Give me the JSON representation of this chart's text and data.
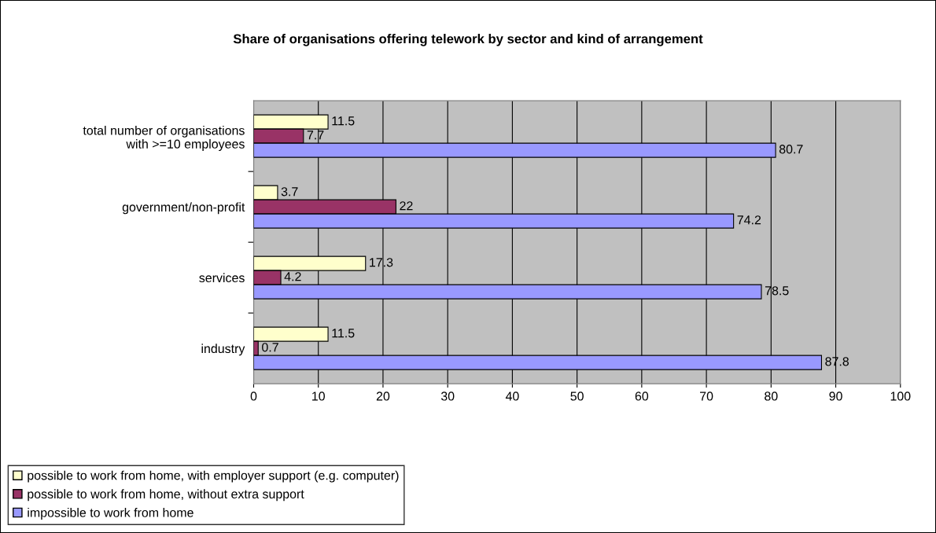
{
  "chart_data": {
    "type": "bar",
    "orientation": "horizontal",
    "title": "Share of organisations offering telework by sector and kind of arrangement",
    "categories": [
      "total number of organisations\nwith >=10 employees",
      "government/non-profit",
      "services",
      "industry"
    ],
    "series": [
      {
        "name": "possible to work from home, with employer support (e.g. computer)",
        "color": "#ffffcc",
        "values": [
          11.5,
          3.7,
          17.3,
          11.5
        ]
      },
      {
        "name": "possible to work from home, without extra support",
        "color": "#993366",
        "values": [
          7.7,
          22,
          4.2,
          0.7
        ]
      },
      {
        "name": "impossible to work from home",
        "color": "#9999ff",
        "values": [
          80.7,
          74.2,
          78.5,
          87.8
        ]
      }
    ],
    "xlim": [
      0,
      100
    ],
    "xticks": [
      0,
      10,
      20,
      30,
      40,
      50,
      60,
      70,
      80,
      90,
      100
    ],
    "grid": "x",
    "legend": "bottom left",
    "data_labels": true
  }
}
